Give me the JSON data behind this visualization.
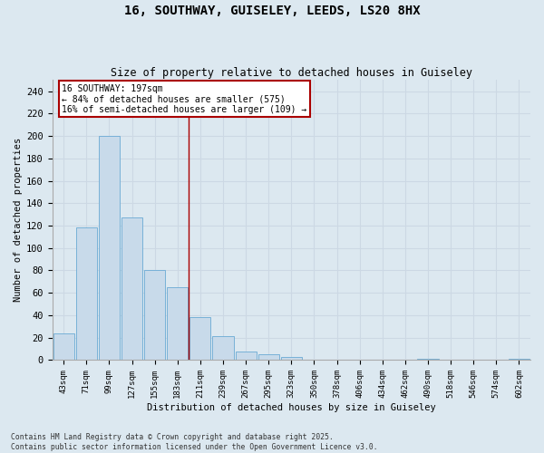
{
  "title1": "16, SOUTHWAY, GUISELEY, LEEDS, LS20 8HX",
  "title2": "Size of property relative to detached houses in Guiseley",
  "xlabel": "Distribution of detached houses by size in Guiseley",
  "ylabel": "Number of detached properties",
  "categories": [
    "43sqm",
    "71sqm",
    "99sqm",
    "127sqm",
    "155sqm",
    "183sqm",
    "211sqm",
    "239sqm",
    "267sqm",
    "295sqm",
    "323sqm",
    "350sqm",
    "378sqm",
    "406sqm",
    "434sqm",
    "462sqm",
    "490sqm",
    "518sqm",
    "546sqm",
    "574sqm",
    "602sqm"
  ],
  "values": [
    24,
    118,
    200,
    127,
    80,
    65,
    38,
    21,
    8,
    5,
    3,
    0,
    0,
    0,
    0,
    0,
    1,
    0,
    0,
    0,
    1
  ],
  "bar_color": "#c8daea",
  "bar_edge_color": "#6aaad4",
  "grid_color": "#ccd8e4",
  "background_color": "#dce8f0",
  "vline_x": 5.5,
  "vline_color": "#aa0000",
  "annotation_text": "16 SOUTHWAY: 197sqm\n← 84% of detached houses are smaller (575)\n16% of semi-detached houses are larger (109) →",
  "annotation_box_color": "#ffffff",
  "annotation_border_color": "#aa0000",
  "ylim": [
    0,
    250
  ],
  "yticks": [
    0,
    20,
    40,
    60,
    80,
    100,
    120,
    140,
    160,
    180,
    200,
    220,
    240
  ],
  "footer1": "Contains HM Land Registry data © Crown copyright and database right 2025.",
  "footer2": "Contains public sector information licensed under the Open Government Licence v3.0."
}
